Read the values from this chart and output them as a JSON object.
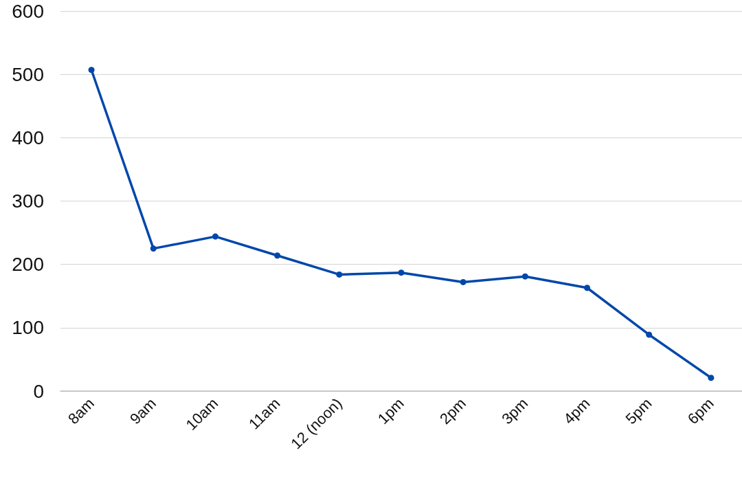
{
  "chart_data": {
    "type": "line",
    "categories": [
      "8am",
      "9am",
      "10am",
      "11am",
      "12 (noon)",
      "1pm",
      "2pm",
      "3pm",
      "4pm",
      "5pm",
      "6pm"
    ],
    "series": [
      {
        "color": "#0047ab",
        "values": [
          507,
          225,
          244,
          214,
          184,
          187,
          172,
          181,
          163,
          89,
          21
        ]
      }
    ],
    "ylim": [
      0,
      600
    ],
    "yticks": [
      0,
      100,
      200,
      300,
      400,
      500,
      600
    ],
    "grid": "y",
    "marker": "circle",
    "line_style": "solid"
  }
}
